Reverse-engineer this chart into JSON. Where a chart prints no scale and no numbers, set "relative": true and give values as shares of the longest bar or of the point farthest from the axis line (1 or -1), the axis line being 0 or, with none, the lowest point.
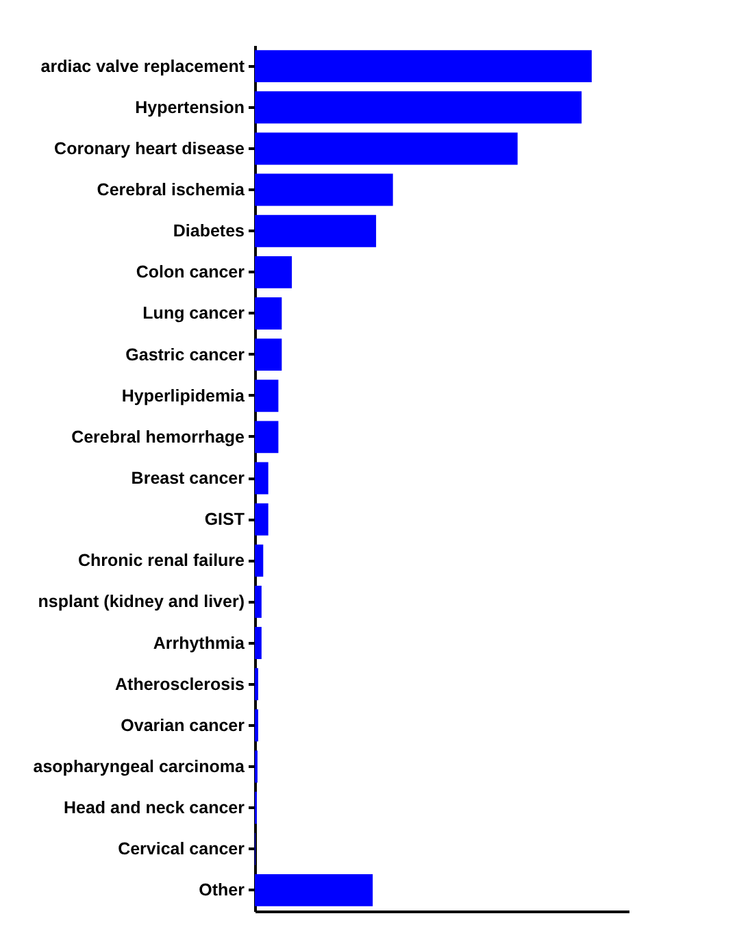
{
  "chart_data": {
    "type": "bar",
    "orientation": "horizontal",
    "relative": true,
    "color": "#0000ff",
    "categories": [
      "ardiac valve replacement",
      "Hypertension",
      "Coronary heart disease",
      "Cerebral ischemia",
      "Diabetes",
      "Colon cancer",
      "Lung cancer",
      "Gastric cancer",
      "Hyperlipidemia",
      "Cerebral hemorrhage",
      "Breast cancer",
      "GIST",
      "Chronic renal failure",
      "nsplant (kidney and liver)",
      "Arrhythmia",
      "Atherosclerosis",
      "Ovarian cancer",
      "asopharyngeal carcinoma",
      "Head and neck cancer",
      "Cervical cancer",
      "Other"
    ],
    "values": [
      1,
      0.97,
      0.78,
      0.41,
      0.36,
      0.11,
      0.08,
      0.08,
      0.07,
      0.07,
      0.04,
      0.04,
      0.025,
      0.02,
      0.02,
      0.01,
      0.01,
      0.008,
      0.006,
      0.002,
      0.35
    ]
  }
}
